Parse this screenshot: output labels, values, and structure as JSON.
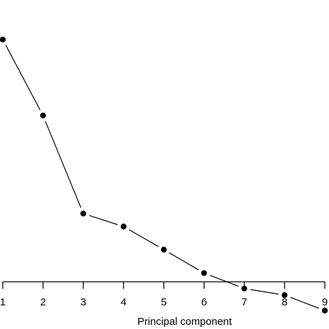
{
  "chart_data": {
    "type": "line",
    "title": "",
    "xlabel": "Principal component",
    "ylabel": "",
    "x": [
      1,
      2,
      3,
      4,
      5,
      6,
      7,
      8,
      9
    ],
    "series": [
      {
        "values": [
          8.37,
          6.2,
          3.4,
          3.03,
          2.37,
          1.7,
          1.26,
          1.07,
          0.63
        ]
      }
    ],
    "xlim": [
      1,
      9
    ],
    "ylim": [
      0.5,
      9.5
    ],
    "grid": false,
    "legend": "none",
    "colors": {
      "line": "#000000",
      "marker": "#000000"
    }
  }
}
